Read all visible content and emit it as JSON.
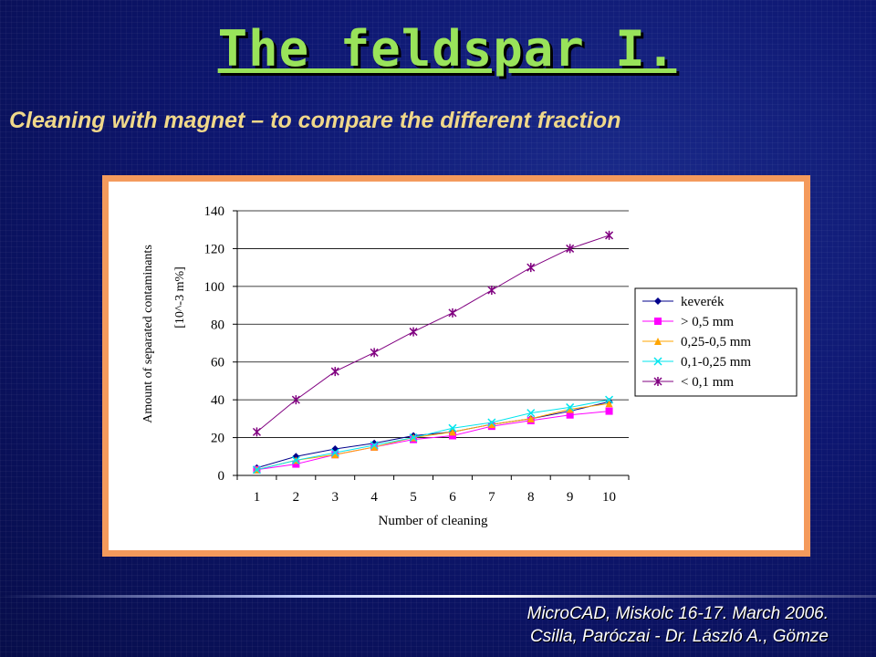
{
  "slide": {
    "title": "The feldspar I.",
    "subtitle": "Cleaning with magnet – to compare the different fraction",
    "footer_line1": "MicroCAD, Miskolc 16-17. March 2006.",
    "footer_line2": "Csilla, Paróczai - Dr. László A., Gömze"
  },
  "colors": {
    "title": "#99e35a",
    "subtitle": "#f0d88a",
    "frame": "#f49a5c",
    "background": "#0b1466"
  },
  "chart_data": {
    "type": "line",
    "title": "",
    "xlabel": "Number of cleaning",
    "ylabel": "Amount of separated contaminants",
    "ylabel2": "[10^-3 m%]",
    "categories": [
      "1",
      "2",
      "3",
      "4",
      "5",
      "6",
      "7",
      "8",
      "9",
      "10"
    ],
    "ylim": [
      0,
      140
    ],
    "yticks": [
      0,
      20,
      40,
      60,
      80,
      100,
      120,
      140
    ],
    "legend_position": "right",
    "series": [
      {
        "name": "keverék",
        "color": "#00008b",
        "marker": "diamond",
        "values": [
          4,
          10,
          14,
          17,
          21,
          23,
          27,
          30,
          34,
          39
        ]
      },
      {
        "name": "> 0,5 mm",
        "color": "#ff00ff",
        "marker": "square",
        "values": [
          3,
          6,
          11,
          15,
          19,
          21,
          26,
          29,
          32,
          34
        ]
      },
      {
        "name": "0,25-0,5 mm",
        "color": "#ffa500",
        "marker": "triangle",
        "values": [
          3,
          8,
          11,
          15,
          20,
          23,
          27,
          30,
          35,
          38
        ]
      },
      {
        "name": "0,1-0,25 mm",
        "color": "#00e5ee",
        "marker": "x",
        "values": [
          3,
          8,
          12,
          16,
          20,
          25,
          28,
          33,
          36,
          40
        ]
      },
      {
        "name": "< 0,1 mm",
        "color": "#800080",
        "marker": "star",
        "values": [
          23,
          40,
          55,
          65,
          76,
          86,
          98,
          110,
          120,
          127
        ]
      }
    ]
  }
}
